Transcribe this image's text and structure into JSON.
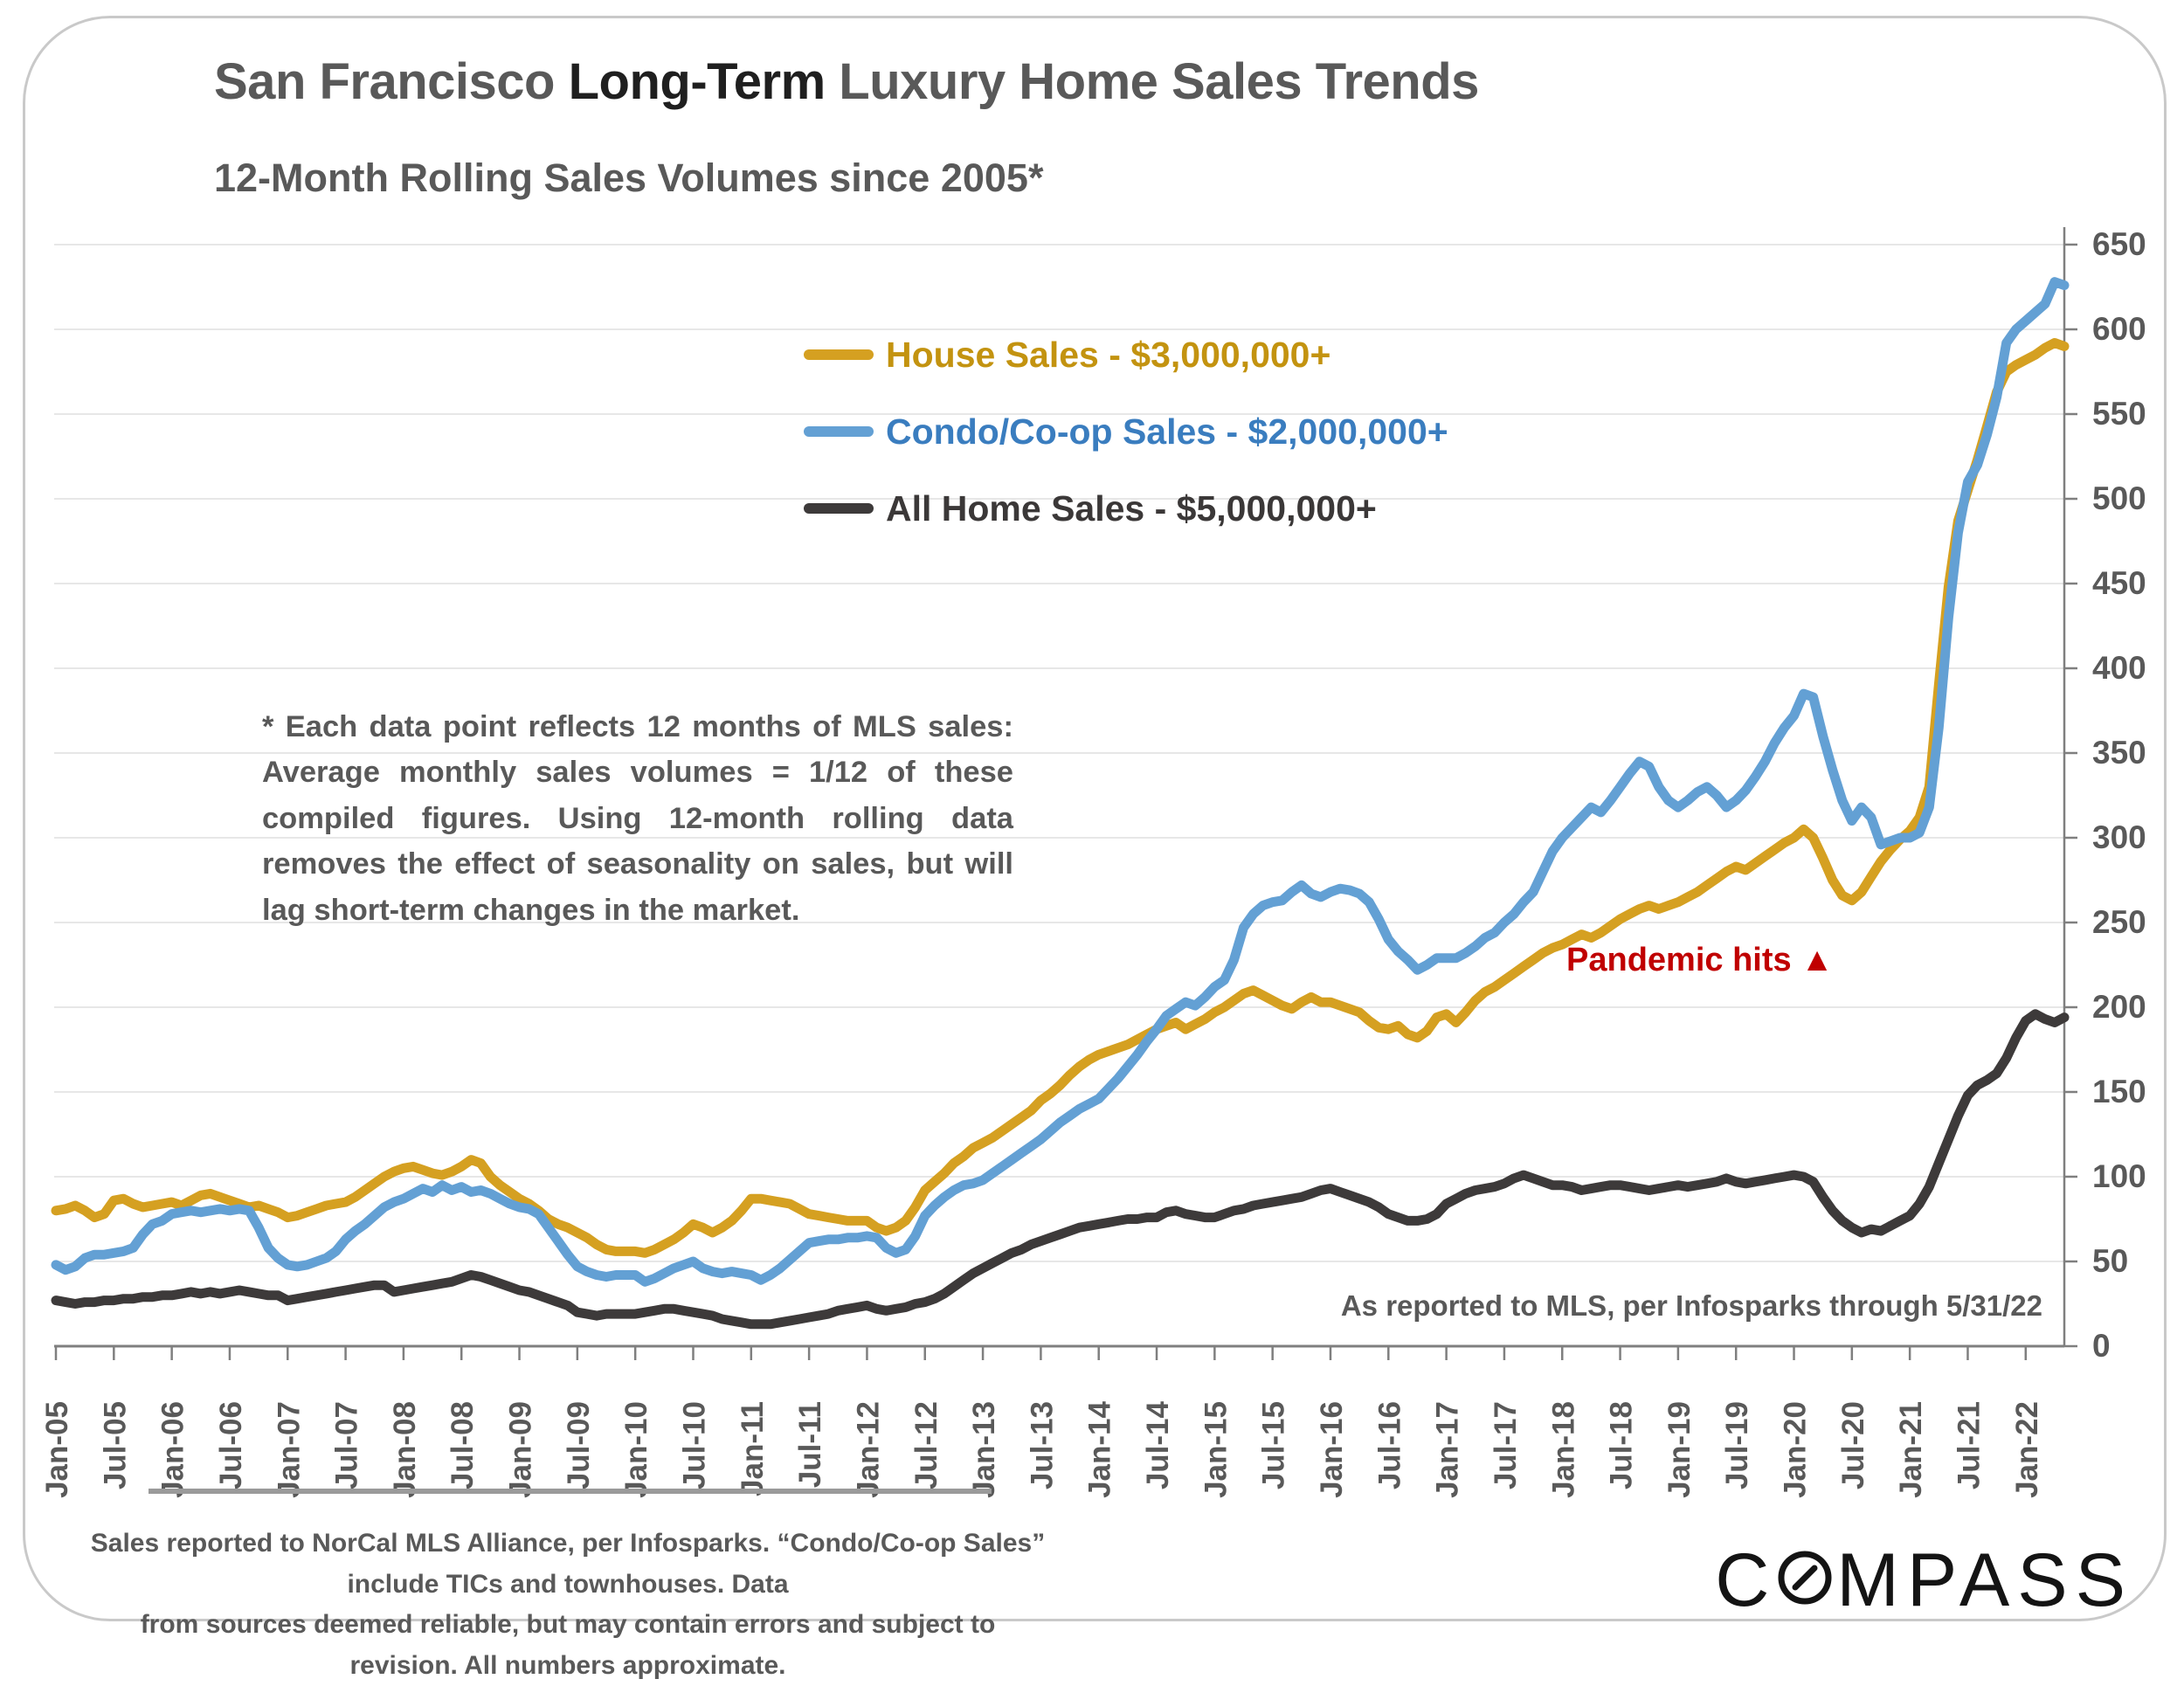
{
  "title": {
    "part1": "San Francisco ",
    "emph": "Long-Term",
    "part2": " Luxury Home Sales Trends"
  },
  "subtitle": "12-Month Rolling Sales Volumes since 2005*",
  "legend": [
    {
      "label": "House Sales - $3,000,000+",
      "line_color": "#d5a021",
      "text_color": "#c39310"
    },
    {
      "label": "Condo/Co-op Sales - $2,000,000+",
      "line_color": "#63a0d4",
      "text_color": "#3a7dbf"
    },
    {
      "label": "All Home Sales - $5,000,000+",
      "line_color": "#3d3a3a",
      "text_color": "#3b3838"
    }
  ],
  "note": "* Each data point reflects 12 months of MLS sales:  Average monthly sales volumes = 1/12 of these compiled figures. Using 12-month rolling data removes the effect of seasonality on sales, but will lag short-term changes in the market.",
  "annotations": {
    "pandemic": "Pandemic hits  ▲",
    "reported": "As reported to MLS, per Infosparks through 5/31/22"
  },
  "footer": {
    "line1": "Sales reported to NorCal MLS Alliance, per Infosparks. “Condo/Co-op Sales” include TICs and townhouses. Data",
    "line2": "from sources deemed reliable, but may contain errors and subject to revision. All numbers  approximate."
  },
  "logo": {
    "pre": "C",
    "post": "MPASS"
  },
  "chart_data": {
    "type": "line",
    "x_axis": {
      "start": "Jan-2005",
      "end": "May-2022",
      "freq": "monthly",
      "count": 209
    },
    "x_tick_labels": [
      "Jan-05",
      "Jul-05",
      "Jan-06",
      "Jul-06",
      "Jan-07",
      "Jul-07",
      "Jan-08",
      "Jul-08",
      "Jan-09",
      "Jul-09",
      "Jan-10",
      "Jul-10",
      "Jan-11",
      "Jul-11",
      "Jan-12",
      "Jul-12",
      "Jan-13",
      "Jul-13",
      "Jan-14",
      "Jul-14",
      "Jan-15",
      "Jul-15",
      "Jan-16",
      "Jul-16",
      "Jan-17",
      "Jul-17",
      "Jan-18",
      "Jul-18",
      "Jan-19",
      "Jul-19",
      "Jan-20",
      "Jul-20",
      "Jan-21",
      "Jul-21",
      "Jan-22"
    ],
    "x_tick_every_months": 6,
    "ylim": [
      0,
      650
    ],
    "ytick_step": 50,
    "grid": true,
    "legend_position": "inside-top",
    "series": [
      {
        "name": "House Sales - $3,000,000+",
        "color": "#d5a021",
        "values": [
          80,
          81,
          83,
          80,
          76,
          78,
          86,
          87,
          84,
          82,
          83,
          84,
          85,
          83,
          86,
          89,
          90,
          88,
          86,
          84,
          82,
          83,
          81,
          79,
          76,
          77,
          79,
          81,
          83,
          84,
          85,
          88,
          92,
          96,
          100,
          103,
          105,
          106,
          104,
          102,
          101,
          103,
          106,
          110,
          108,
          100,
          95,
          91,
          87,
          84,
          80,
          75,
          72,
          70,
          67,
          64,
          60,
          57,
          56,
          56,
          56,
          55,
          57,
          60,
          63,
          67,
          72,
          70,
          67,
          70,
          74,
          80,
          87,
          87,
          86,
          85,
          84,
          81,
          78,
          77,
          76,
          75,
          74,
          74,
          74,
          70,
          68,
          70,
          74,
          82,
          92,
          97,
          102,
          108,
          112,
          117,
          120,
          123,
          127,
          131,
          135,
          139,
          145,
          149,
          154,
          160,
          165,
          169,
          172,
          174,
          176,
          178,
          181,
          184,
          187,
          189,
          191,
          187,
          190,
          193,
          197,
          200,
          204,
          208,
          210,
          207,
          204,
          201,
          199,
          203,
          206,
          203,
          203,
          201,
          199,
          197,
          192,
          188,
          187,
          189,
          184,
          182,
          186,
          194,
          196,
          191,
          197,
          204,
          209,
          212,
          216,
          220,
          224,
          228,
          232,
          235,
          237,
          240,
          243,
          241,
          244,
          248,
          252,
          255,
          258,
          260,
          258,
          260,
          262,
          265,
          268,
          272,
          276,
          280,
          283,
          281,
          285,
          289,
          293,
          297,
          300,
          305,
          300,
          288,
          275,
          266,
          263,
          268,
          277,
          286,
          293,
          299,
          304,
          312,
          330,
          390,
          448,
          487,
          505,
          523,
          543,
          563,
          575,
          579,
          582,
          585,
          589,
          592,
          590
        ]
      },
      {
        "name": "Condo/Co-op Sales - $2,000,000+",
        "color": "#63a0d4",
        "values": [
          48,
          45,
          47,
          52,
          54,
          54,
          55,
          56,
          58,
          66,
          72,
          74,
          78,
          79,
          80,
          79,
          80,
          81,
          80,
          81,
          80,
          70,
          58,
          52,
          48,
          47,
          48,
          50,
          52,
          56,
          63,
          68,
          72,
          77,
          82,
          85,
          87,
          90,
          93,
          91,
          95,
          92,
          94,
          91,
          92,
          90,
          87,
          84,
          82,
          81,
          78,
          70,
          62,
          54,
          47,
          44,
          42,
          41,
          42,
          42,
          42,
          38,
          40,
          43,
          46,
          48,
          50,
          46,
          44,
          43,
          44,
          43,
          42,
          39,
          42,
          46,
          51,
          56,
          61,
          62,
          63,
          63,
          64,
          64,
          65,
          64,
          58,
          55,
          57,
          65,
          77,
          83,
          88,
          92,
          95,
          96,
          98,
          102,
          106,
          110,
          114,
          118,
          122,
          127,
          132,
          136,
          140,
          143,
          146,
          152,
          158,
          165,
          172,
          180,
          187,
          195,
          199,
          203,
          201,
          206,
          212,
          216,
          228,
          247,
          255,
          260,
          262,
          263,
          268,
          272,
          267,
          265,
          268,
          270,
          269,
          267,
          262,
          252,
          240,
          233,
          228,
          222,
          225,
          229,
          229,
          229,
          232,
          236,
          241,
          244,
          250,
          255,
          262,
          268,
          280,
          292,
          300,
          306,
          312,
          318,
          315,
          322,
          330,
          338,
          345,
          342,
          330,
          322,
          318,
          322,
          327,
          330,
          325,
          318,
          322,
          328,
          336,
          345,
          356,
          365,
          372,
          385,
          383,
          360,
          340,
          322,
          310,
          318,
          312,
          296,
          298,
          300,
          300,
          303,
          318,
          365,
          430,
          480,
          510,
          520,
          538,
          560,
          592,
          600,
          605,
          610,
          615,
          628,
          626
        ]
      },
      {
        "name": "All Home Sales - $5,000,000+",
        "color": "#3d3a3a",
        "values": [
          27,
          26,
          25,
          26,
          26,
          27,
          27,
          28,
          28,
          29,
          29,
          30,
          30,
          31,
          32,
          31,
          32,
          31,
          32,
          33,
          32,
          31,
          30,
          30,
          27,
          28,
          29,
          30,
          31,
          32,
          33,
          34,
          35,
          36,
          36,
          32,
          33,
          34,
          35,
          36,
          37,
          38,
          40,
          42,
          41,
          39,
          37,
          35,
          33,
          32,
          30,
          28,
          26,
          24,
          20,
          19,
          18,
          19,
          19,
          19,
          19,
          20,
          21,
          22,
          22,
          21,
          20,
          19,
          18,
          16,
          15,
          14,
          13,
          13,
          13,
          14,
          15,
          16,
          17,
          18,
          19,
          21,
          22,
          23,
          24,
          22,
          21,
          22,
          23,
          25,
          26,
          28,
          31,
          35,
          39,
          43,
          46,
          49,
          52,
          55,
          57,
          60,
          62,
          64,
          66,
          68,
          70,
          71,
          72,
          73,
          74,
          75,
          75,
          76,
          76,
          79,
          80,
          78,
          77,
          76,
          76,
          78,
          80,
          81,
          83,
          84,
          85,
          86,
          87,
          88,
          90,
          92,
          93,
          91,
          89,
          87,
          85,
          82,
          78,
          76,
          74,
          74,
          75,
          78,
          84,
          87,
          90,
          92,
          93,
          94,
          96,
          99,
          101,
          99,
          97,
          95,
          95,
          94,
          92,
          93,
          94,
          95,
          95,
          94,
          93,
          92,
          93,
          94,
          95,
          94,
          95,
          96,
          97,
          99,
          97,
          96,
          97,
          98,
          99,
          100,
          101,
          100,
          97,
          88,
          80,
          74,
          70,
          67,
          69,
          68,
          71,
          74,
          77,
          84,
          94,
          108,
          122,
          136,
          148,
          154,
          157,
          161,
          170,
          182,
          192,
          196,
          193,
          191,
          194
        ]
      }
    ]
  }
}
